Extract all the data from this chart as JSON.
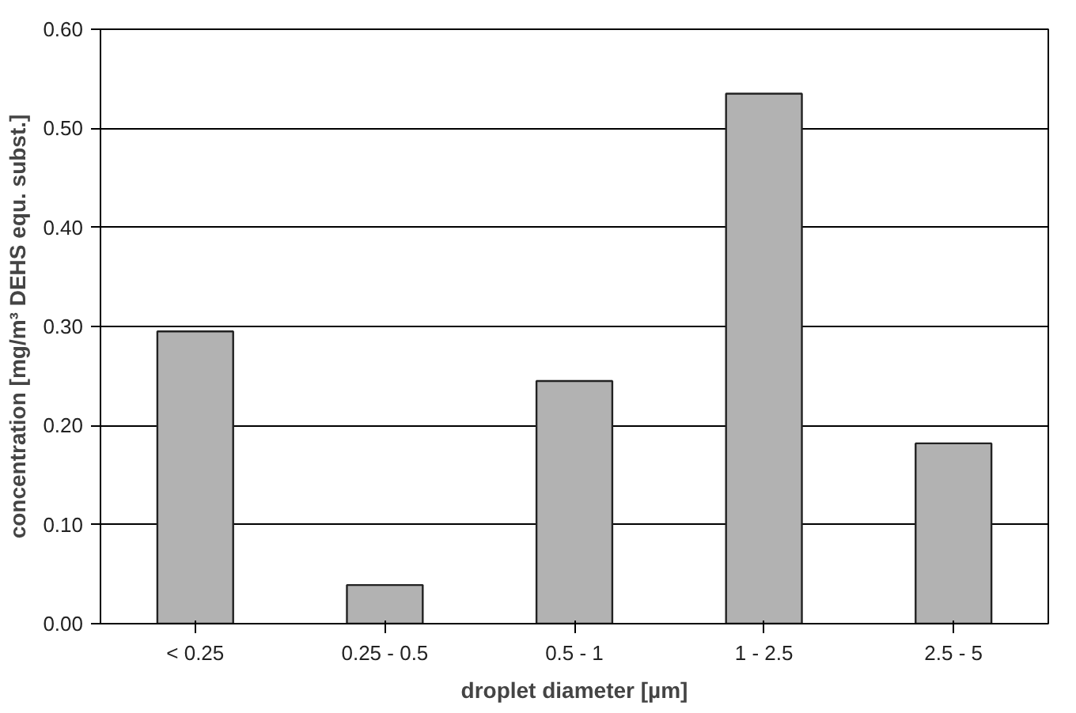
{
  "chart_data": {
    "type": "bar",
    "xlabel": "droplet diameter [µm]",
    "ylabel": "concentration [mg/m³ DEHS equ. subst.]",
    "categories": [
      "< 0.25",
      "0.25 - 0.5",
      "0.5 - 1",
      "1 - 2.5",
      "2.5 - 5"
    ],
    "values": [
      0.295,
      0.039,
      0.245,
      0.535,
      0.182
    ],
    "color": "#b2b2b2",
    "ylim": [
      0,
      0.6
    ],
    "yticks": [
      {
        "value": 0,
        "label": "0.00"
      },
      {
        "value": 0.1,
        "label": "0.10"
      },
      {
        "value": 0.2,
        "label": "0.20"
      },
      {
        "value": 0.3,
        "label": "0.30"
      },
      {
        "value": 0.4,
        "label": "0.40"
      },
      {
        "value": 0.5,
        "label": "0.50"
      },
      {
        "value": 0.6,
        "label": "0.60"
      }
    ],
    "grid": "y"
  }
}
